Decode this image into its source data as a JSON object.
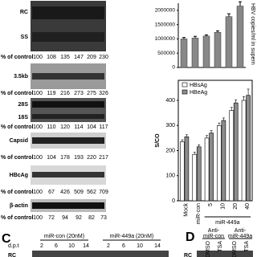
{
  "blots": {
    "labels": [
      "RC",
      "SS",
      "3.5kb",
      "28S",
      "18S",
      "Capsid",
      "HBcAg",
      "β-actin"
    ],
    "percent_label": "% of control",
    "percent_rows": [
      [
        100,
        108,
        135,
        147,
        209,
        230
      ],
      [
        100,
        119,
        216,
        273,
        275,
        326
      ],
      [
        100,
        110,
        120,
        114,
        104,
        117
      ],
      [
        100,
        104,
        178,
        193,
        220,
        217
      ],
      [
        100,
        67,
        426,
        509,
        562,
        709
      ],
      [
        100,
        72,
        94,
        92,
        82,
        73
      ]
    ]
  },
  "chart_data": [
    {
      "type": "bar",
      "y_label": "HBV copies/ml in supern",
      "values": [
        1000000,
        1030000,
        1100000,
        1230000,
        1780000,
        2150000
      ],
      "errors": [
        50000,
        60000,
        40000,
        50000,
        100000,
        150000
      ],
      "color": "#888888",
      "ylim": [
        0,
        2250000
      ],
      "yticks": [
        0,
        500000,
        1000000,
        1500000,
        2000000
      ]
    },
    {
      "type": "grouped_bar",
      "y_label": "S/CO",
      "categories": [
        "Mock",
        "miR-con",
        "5",
        "10",
        "20",
        "40"
      ],
      "group_label": "miR-449a",
      "legend": "top-left",
      "series": [
        {
          "name": "HBsAg",
          "color": "#ffffff",
          "values": [
            235,
            185,
            250,
            300,
            360,
            400
          ],
          "errors": [
            8,
            8,
            10,
            10,
            12,
            15
          ]
        },
        {
          "name": "HBeAg",
          "color": "#8c8c8c",
          "values": [
            255,
            215,
            270,
            320,
            390,
            420
          ],
          "errors": [
            8,
            8,
            10,
            10,
            12,
            25
          ]
        }
      ],
      "ylim": [
        0,
        480
      ],
      "yticks": [
        0,
        100,
        200,
        300,
        400
      ]
    }
  ],
  "panel_c": {
    "letter": "C",
    "groups": [
      "miR-con (20nM)",
      "miR-449a (20nM)"
    ],
    "dpt_label": "d.p.t",
    "days": [
      "2",
      "6",
      "10",
      "14",
      "2",
      "6",
      "10",
      "14"
    ],
    "row_label": "RC"
  },
  "panel_d": {
    "letter": "D",
    "groups": [
      [
        "Anti-",
        "miR-con"
      ],
      [
        "Anti-",
        "miR-449a"
      ]
    ],
    "treatments": [
      "DMSO",
      "TSA",
      "DMSO",
      "TSA"
    ],
    "row_label": "RC"
  }
}
